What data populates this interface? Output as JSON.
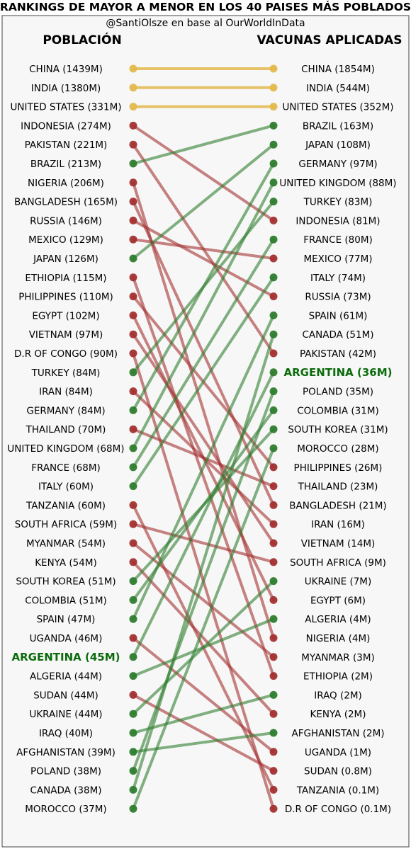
{
  "chart_data": {
    "type": "slope",
    "title": "RANKINGS DE MAYOR A MENOR EN LOS 40 PAISES MÁS POBLADOS",
    "subtitle": "@SantiOlsze en base al OurWorldInData",
    "left_header": "POBLACIÓN",
    "right_header": "VACUNAS APLICADAS",
    "highlight": "ARGENTINA",
    "colors": {
      "same": "#e3b94d",
      "up": "#2e7d2e",
      "down": "#a33030",
      "highlight": "#0b6b0b"
    },
    "left": [
      {
        "country": "CHINA",
        "value": "1439M"
      },
      {
        "country": "INDIA",
        "value": "1380M"
      },
      {
        "country": "UNITED STATES",
        "value": "331M"
      },
      {
        "country": "INDONESIA",
        "value": "274M"
      },
      {
        "country": "PAKISTAN",
        "value": "221M"
      },
      {
        "country": "BRAZIL",
        "value": "213M"
      },
      {
        "country": "NIGERIA",
        "value": "206M"
      },
      {
        "country": "BANGLADESH",
        "value": "165M"
      },
      {
        "country": "RUSSIA",
        "value": "146M"
      },
      {
        "country": "MEXICO",
        "value": "129M"
      },
      {
        "country": "JAPAN",
        "value": "126M"
      },
      {
        "country": "ETHIOPIA",
        "value": "115M"
      },
      {
        "country": "PHILIPPINES",
        "value": "110M"
      },
      {
        "country": "EGYPT",
        "value": "102M"
      },
      {
        "country": "VIETNAM",
        "value": "97M"
      },
      {
        "country": "D.R OF CONGO",
        "value": "90M"
      },
      {
        "country": "TURKEY",
        "value": "84M"
      },
      {
        "country": "IRAN",
        "value": "84M"
      },
      {
        "country": "GERMANY",
        "value": "84M"
      },
      {
        "country": "THAILAND",
        "value": "70M"
      },
      {
        "country": "UNITED KINGDOM",
        "value": "68M"
      },
      {
        "country": "FRANCE",
        "value": "68M"
      },
      {
        "country": "ITALY",
        "value": "60M"
      },
      {
        "country": "TANZANIA",
        "value": "60M"
      },
      {
        "country": "SOUTH AFRICA",
        "value": "59M"
      },
      {
        "country": "MYANMAR",
        "value": "54M"
      },
      {
        "country": "KENYA",
        "value": "54M"
      },
      {
        "country": "SOUTH KOREA",
        "value": "51M"
      },
      {
        "country": "COLOMBIA",
        "value": "51M"
      },
      {
        "country": "SPAIN",
        "value": "47M"
      },
      {
        "country": "UGANDA",
        "value": "46M"
      },
      {
        "country": "ARGENTINA",
        "value": "45M"
      },
      {
        "country": "ALGERIA",
        "value": "44M"
      },
      {
        "country": "SUDAN",
        "value": "44M"
      },
      {
        "country": "UKRAINE",
        "value": "44M"
      },
      {
        "country": "IRAQ",
        "value": "40M"
      },
      {
        "country": "AFGHANISTAN",
        "value": "39M"
      },
      {
        "country": "POLAND",
        "value": "38M"
      },
      {
        "country": "CANADA",
        "value": "38M"
      },
      {
        "country": "MOROCCO",
        "value": "37M"
      }
    ],
    "right": [
      {
        "country": "CHINA",
        "value": "1854M"
      },
      {
        "country": "INDIA",
        "value": "544M"
      },
      {
        "country": "UNITED STATES",
        "value": "352M"
      },
      {
        "country": "BRAZIL",
        "value": "163M"
      },
      {
        "country": "JAPAN",
        "value": "108M"
      },
      {
        "country": "GERMANY",
        "value": "97M"
      },
      {
        "country": "UNITED KINGDOM",
        "value": "88M"
      },
      {
        "country": "TURKEY",
        "value": "83M"
      },
      {
        "country": "INDONESIA",
        "value": "81M"
      },
      {
        "country": "FRANCE",
        "value": "80M"
      },
      {
        "country": "MEXICO",
        "value": "77M"
      },
      {
        "country": "ITALY",
        "value": "74M"
      },
      {
        "country": "RUSSIA",
        "value": "73M"
      },
      {
        "country": "SPAIN",
        "value": "61M"
      },
      {
        "country": "CANADA",
        "value": "51M"
      },
      {
        "country": "PAKISTAN",
        "value": "42M"
      },
      {
        "country": "ARGENTINA",
        "value": "36M"
      },
      {
        "country": "POLAND",
        "value": "35M"
      },
      {
        "country": "COLOMBIA",
        "value": "31M"
      },
      {
        "country": "SOUTH KOREA",
        "value": "31M"
      },
      {
        "country": "MOROCCO",
        "value": "28M"
      },
      {
        "country": "PHILIPPINES",
        "value": "26M"
      },
      {
        "country": "THAILAND",
        "value": "23M"
      },
      {
        "country": "BANGLADESH",
        "value": "21M"
      },
      {
        "country": "IRAN",
        "value": "16M"
      },
      {
        "country": "VIETNAM",
        "value": "14M"
      },
      {
        "country": "SOUTH AFRICA",
        "value": "9M"
      },
      {
        "country": "UKRAINE",
        "value": "7M"
      },
      {
        "country": "EGYPT",
        "value": "6M"
      },
      {
        "country": "ALGERIA",
        "value": "4M"
      },
      {
        "country": "NIGERIA",
        "value": "4M"
      },
      {
        "country": "MYANMAR",
        "value": "3M"
      },
      {
        "country": "ETHIOPIA",
        "value": "2M"
      },
      {
        "country": "IRAQ",
        "value": "2M"
      },
      {
        "country": "KENYA",
        "value": "2M"
      },
      {
        "country": "AFGHANISTAN",
        "value": "2M"
      },
      {
        "country": "UGANDA",
        "value": "1M"
      },
      {
        "country": "SUDAN",
        "value": "0.8M"
      },
      {
        "country": "TANZANIA",
        "value": "0.1M"
      },
      {
        "country": "D.R OF CONGO",
        "value": "0.1M"
      }
    ]
  }
}
